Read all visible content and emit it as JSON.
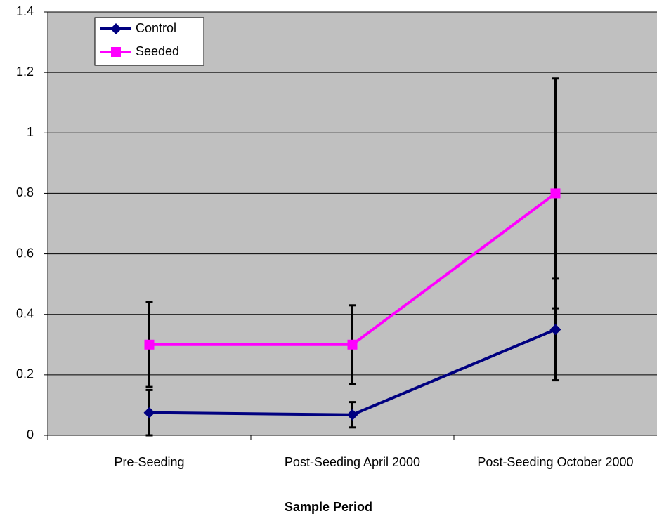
{
  "chart_data": {
    "type": "line",
    "categories": [
      "Pre-Seeding",
      "Post-Seeding April 2000",
      "Post-Seeding October 2000"
    ],
    "series": [
      {
        "name": "Control",
        "color": "#000080",
        "marker": "diamond",
        "values": [
          0.075,
          0.068,
          0.35
        ],
        "errors": [
          0.075,
          0.042,
          0.168
        ]
      },
      {
        "name": "Seeded",
        "color": "#ff00ff",
        "marker": "square",
        "values": [
          0.3,
          0.3,
          0.8
        ],
        "errors": [
          0.14,
          0.13,
          0.38
        ]
      }
    ],
    "x_label": "Sample Period",
    "ylim": [
      0,
      1.4
    ],
    "yticks": [
      0,
      0.2,
      0.4,
      0.6,
      0.8,
      1,
      1.2,
      1.4
    ],
    "grid": true,
    "legend": "upper-left",
    "background": "#c0c0c0"
  }
}
